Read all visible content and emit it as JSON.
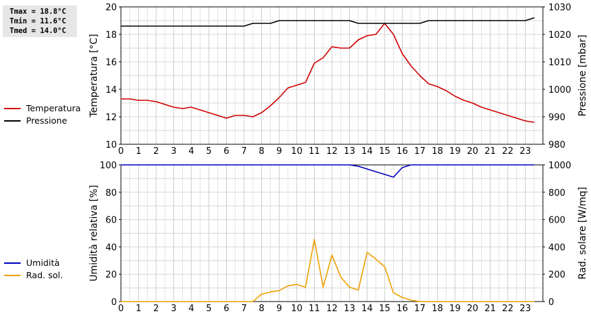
{
  "stats": {
    "tmax": "Tmax = 18.8°C",
    "tmin": "Tmin = 11.6°C",
    "tmed": "Tmed = 14.0°C"
  },
  "chart_data": [
    {
      "type": "line",
      "ylabel": "Temperatura [°C]",
      "y2label": "Pressione [mbar]",
      "ylim": [
        10,
        20
      ],
      "y2lim": [
        980,
        1030
      ],
      "xlim": [
        0,
        24
      ],
      "xticks": [
        0,
        1,
        2,
        3,
        4,
        5,
        6,
        7,
        8,
        9,
        10,
        11,
        12,
        13,
        14,
        15,
        16,
        17,
        18,
        19,
        20,
        21,
        22,
        23
      ],
      "yticks": [
        10,
        12,
        14,
        16,
        18,
        20
      ],
      "y2ticks": [
        980,
        990,
        1000,
        1010,
        1020,
        1030
      ],
      "grid": true,
      "legend": "left",
      "series": [
        {
          "name": "Temperatura",
          "color": "#d00000",
          "axis": "left",
          "x": [
            0,
            0.5,
            1,
            1.5,
            2,
            2.5,
            3,
            3.5,
            4,
            4.5,
            5,
            5.5,
            6,
            6.5,
            7,
            7.5,
            8,
            8.5,
            9,
            9.5,
            10,
            10.5,
            11,
            11.5,
            12,
            12.5,
            13,
            13.5,
            14,
            14.5,
            15,
            15.5,
            16,
            16.5,
            17,
            17.5,
            18,
            18.5,
            19,
            19.5,
            20,
            20.5,
            21,
            21.5,
            22,
            22.5,
            23,
            23.5
          ],
          "values": [
            13.3,
            13.3,
            13.2,
            13.2,
            13.1,
            12.9,
            12.7,
            12.6,
            12.7,
            12.5,
            12.3,
            12.1,
            11.9,
            12.1,
            12.1,
            12.0,
            12.3,
            12.8,
            13.4,
            14.1,
            14.3,
            14.5,
            15.9,
            16.3,
            17.1,
            17.0,
            17.0,
            17.6,
            17.9,
            18.0,
            18.8,
            18.0,
            16.6,
            15.7,
            15.0,
            14.4,
            14.2,
            13.9,
            13.5,
            13.2,
            13.0,
            12.7,
            12.5,
            12.3,
            12.1,
            11.9,
            11.7,
            11.6
          ]
        },
        {
          "name": "Pressione",
          "color": "#000000",
          "axis": "right",
          "x": [
            0,
            7,
            7.5,
            8.5,
            9,
            13,
            13.5,
            17,
            17.5,
            23,
            23.5
          ],
          "values": [
            1023,
            1023,
            1024,
            1024,
            1025,
            1025,
            1024,
            1024,
            1025,
            1025,
            1026
          ]
        }
      ]
    },
    {
      "type": "line",
      "ylabel": "Umidità relativa [%]",
      "y2label": "Rad. solare [W/mq]",
      "ylim": [
        0,
        100
      ],
      "y2lim": [
        0,
        1000
      ],
      "xlim": [
        0,
        24
      ],
      "xticks": [
        0,
        1,
        2,
        3,
        4,
        5,
        6,
        7,
        8,
        9,
        10,
        11,
        12,
        13,
        14,
        15,
        16,
        17,
        18,
        19,
        20,
        21,
        22,
        23
      ],
      "yticks": [
        0,
        20,
        40,
        60,
        80,
        100
      ],
      "y2ticks": [
        0,
        200,
        400,
        600,
        800,
        1000
      ],
      "grid": true,
      "legend": "left",
      "series": [
        {
          "name": "Umidità",
          "color": "#0000c0",
          "axis": "left",
          "x": [
            0,
            13,
            13.5,
            14,
            14.5,
            15,
            15.5,
            16,
            16.5,
            17,
            23.5
          ],
          "values": [
            100,
            100,
            99,
            97,
            95,
            93,
            91,
            98,
            100,
            100,
            100
          ]
        },
        {
          "name": "Rad. sol.",
          "color": "#f0a000",
          "axis": "right",
          "x": [
            0,
            7.5,
            8,
            8.5,
            9,
            9.5,
            10,
            10.5,
            11,
            11.5,
            12,
            12.5,
            13,
            13.5,
            14,
            14.5,
            15,
            15.5,
            16,
            16.5,
            17,
            23.5
          ],
          "values": [
            0,
            0,
            55,
            70,
            80,
            115,
            125,
            105,
            455,
            105,
            340,
            180,
            105,
            85,
            360,
            310,
            255,
            65,
            30,
            10,
            0,
            0
          ]
        }
      ]
    }
  ]
}
